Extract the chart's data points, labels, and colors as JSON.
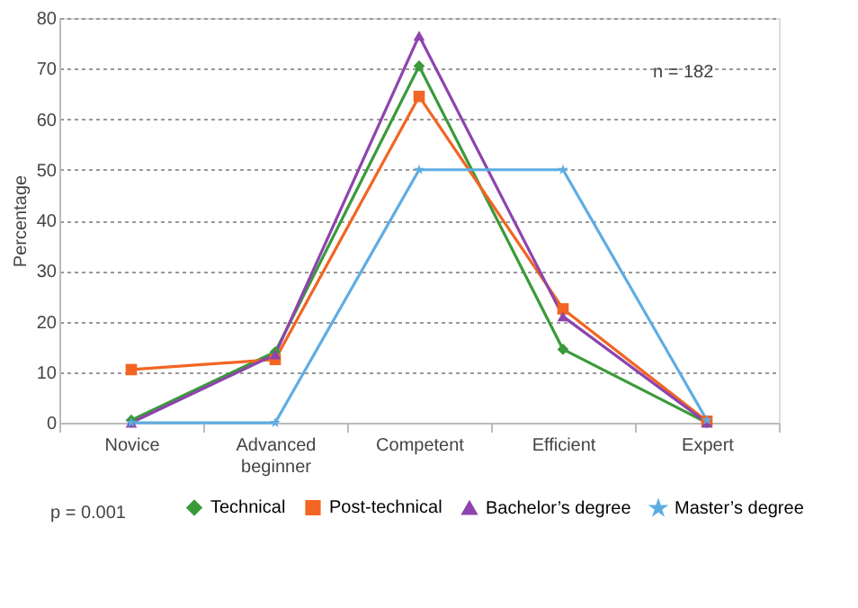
{
  "chart_data": {
    "type": "line",
    "ylabel": "Percentage",
    "categories": [
      "Novice",
      "Advanced beginner",
      "Competent",
      "Efficient",
      "Expert"
    ],
    "ylim": [
      0,
      80
    ],
    "yticks": [
      0,
      10,
      20,
      30,
      40,
      50,
      60,
      70,
      80
    ],
    "grid": "y",
    "legend": "bottom",
    "series": [
      {
        "name": "Technical",
        "color": "#3a9a3a",
        "marker": "diamond",
        "values": [
          0.5,
          14,
          70.5,
          14.5,
          0
        ]
      },
      {
        "name": "Post-technical",
        "color": "#f26522",
        "marker": "square",
        "values": [
          10.5,
          12.5,
          64.5,
          22.5,
          0.3
        ]
      },
      {
        "name": "Bachelor’s degree",
        "color": "#8e44ad",
        "marker": "triangle",
        "values": [
          0,
          13.5,
          76.5,
          21,
          0
        ]
      },
      {
        "name": "Master’s degree",
        "color": "#5dade2",
        "marker": "star",
        "values": [
          0,
          0,
          50,
          50,
          0.5
        ]
      }
    ],
    "annotations": [
      "n = 182",
      "p = 0.001"
    ]
  }
}
